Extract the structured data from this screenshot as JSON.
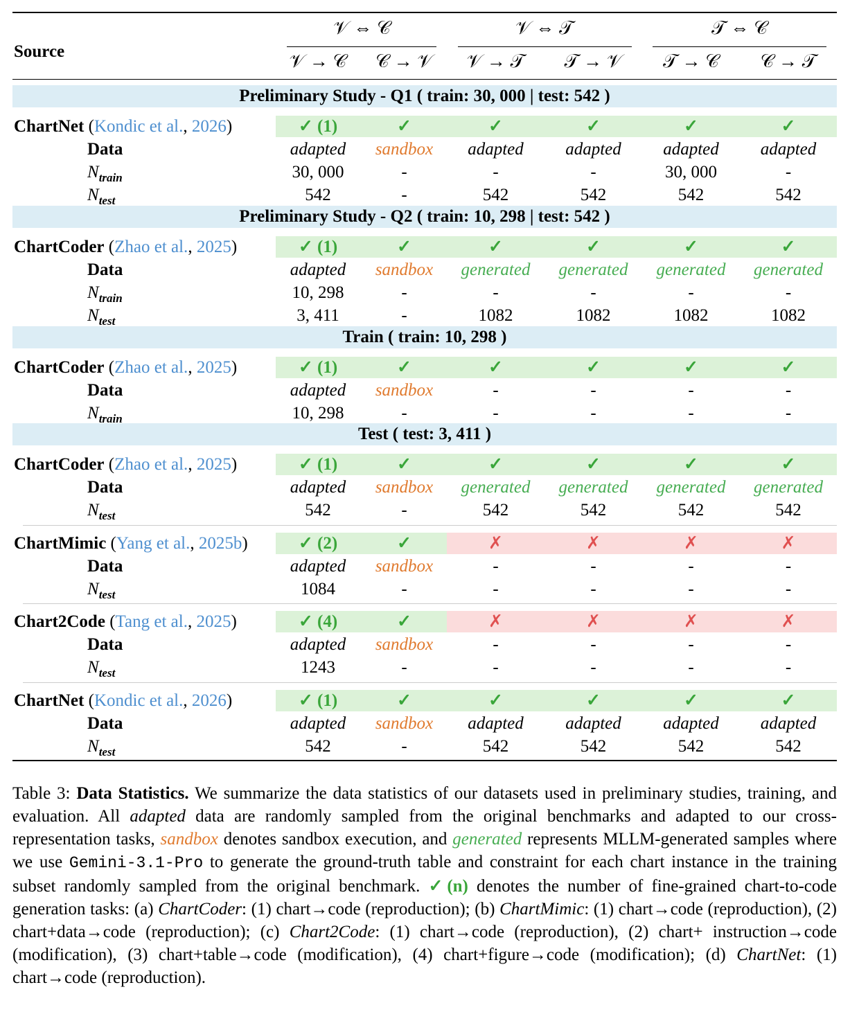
{
  "header": {
    "source": "Source",
    "groups": [
      "𝒱 ⇔ 𝒞",
      "𝒱 ⇔ 𝒯",
      "𝒯 ⇔ 𝒞"
    ],
    "tasks": [
      "𝒱 → 𝒞",
      "𝒞 → 𝒱",
      "𝒱 → 𝒯",
      "𝒯 → 𝒱",
      "𝒯 → 𝒞",
      "𝒞 → 𝒯"
    ]
  },
  "labels": {
    "data": "Data",
    "n": "N",
    "train": "train",
    "test": "test"
  },
  "bands": {
    "q1": "Preliminary Study - Q1 ( train: 30, 000 | test: 542 )",
    "q2": "Preliminary Study - Q2 ( train: 10, 298 | test: 542 )",
    "train": "Train ( train: 10, 298 )",
    "test": "Test ( test: 3, 411 )"
  },
  "blocks": {
    "b1": {
      "name": "ChartNet",
      "cite_a": "Kondic et al.",
      "cite_y": "2026",
      "first": "✓ (1)",
      "marks": [
        "✓",
        "✓",
        "✓",
        "✓",
        "✓"
      ],
      "data": [
        "adapted",
        "sandbox",
        "adapted",
        "adapted",
        "adapted",
        "adapted"
      ],
      "ntrain": [
        "30, 000",
        "-",
        "-",
        "-",
        "30, 000",
        "-"
      ],
      "ntest": [
        "542",
        "-",
        "542",
        "542",
        "542",
        "542"
      ]
    },
    "b2": {
      "name": "ChartCoder",
      "cite_a": "Zhao et al.",
      "cite_y": "2025",
      "first": "✓ (1)",
      "marks": [
        "✓",
        "✓",
        "✓",
        "✓",
        "✓"
      ],
      "data": [
        "adapted",
        "sandbox",
        "generated",
        "generated",
        "generated",
        "generated"
      ],
      "ntrain": [
        "10, 298",
        "-",
        "-",
        "-",
        "-",
        "-"
      ],
      "ntest": [
        "3, 411",
        "-",
        "1082",
        "1082",
        "1082",
        "1082"
      ]
    },
    "b3": {
      "name": "ChartCoder",
      "cite_a": "Zhao et al.",
      "cite_y": "2025",
      "first": "✓ (1)",
      "marks": [
        "✓",
        "✓",
        "✓",
        "✓",
        "✓"
      ],
      "data": [
        "adapted",
        "sandbox",
        "-",
        "-",
        "-",
        "-"
      ],
      "ntrain": [
        "10, 298",
        "-",
        "-",
        "-",
        "-",
        "-"
      ]
    },
    "b4": {
      "name": "ChartCoder",
      "cite_a": "Zhao et al.",
      "cite_y": "2025",
      "first": "✓ (1)",
      "marks": [
        "✓",
        "✓",
        "✓",
        "✓",
        "✓"
      ],
      "data": [
        "adapted",
        "sandbox",
        "generated",
        "generated",
        "generated",
        "generated"
      ],
      "ntest": [
        "542",
        "-",
        "542",
        "542",
        "542",
        "542"
      ]
    },
    "b5": {
      "name": "ChartMimic",
      "cite_a": "Yang et al.",
      "cite_y": "2025b",
      "first": "✓ (2)",
      "marks": [
        "✓",
        "✗",
        "✗",
        "✗",
        "✗"
      ],
      "data": [
        "adapted",
        "sandbox",
        "-",
        "-",
        "-",
        "-"
      ],
      "ntest": [
        "1084",
        "-",
        "-",
        "-",
        "-",
        "-"
      ]
    },
    "b6": {
      "name": "Chart2Code",
      "cite_a": "Tang et al.",
      "cite_y": "2025",
      "first": "✓ (4)",
      "marks": [
        "✓",
        "✗",
        "✗",
        "✗",
        "✗"
      ],
      "data": [
        "adapted",
        "sandbox",
        "-",
        "-",
        "-",
        "-"
      ],
      "ntest": [
        "1243",
        "-",
        "-",
        "-",
        "-",
        "-"
      ]
    },
    "b7": {
      "name": "ChartNet",
      "cite_a": "Kondic et al.",
      "cite_y": "2026",
      "first": "✓ (1)",
      "marks": [
        "✓",
        "✓",
        "✓",
        "✓",
        "✓"
      ],
      "data": [
        "adapted",
        "sandbox",
        "adapted",
        "adapted",
        "adapted",
        "adapted"
      ],
      "ntest": [
        "542",
        "-",
        "542",
        "542",
        "542",
        "542"
      ]
    }
  },
  "caption": {
    "p1": "Table 3: ",
    "p2": "Data Statistics.",
    "p3": " We summarize the data statistics of our datasets used in preliminary studies, training, and evaluation. All ",
    "p4": "adapted",
    "p5": " data are randomly sampled from the original benchmarks and adapted to our cross-representation tasks, ",
    "p6": "sandbox",
    "p7": " denotes sandbox execution, and ",
    "p8": "generated",
    "p9": " represents MLLM-generated samples where we use ",
    "p10": "Gemini-3.1-Pro",
    "p11": " to generate the ground-truth table and constraint for each chart instance in the training subset randomly sampled from the original benchmark. ",
    "p12": "✓(n)",
    "p13": " denotes the number of fine-grained chart-to-code generation tasks: (a) ",
    "p14": "ChartCoder",
    "p15": ": (1) chart→code (reproduction); (b) ",
    "p16": "ChartMimic",
    "p17": ": (1) chart→code (reproduction), (2) chart+data→code (reproduction); (c) ",
    "p18": "Chart2Code",
    "p19": ": (1) chart→code (reproduction), (2) chart+ instruction→code (modification), (3) chart+table→code (modification), (4) chart+figure→code (modification); (d) ",
    "p20": "ChartNet",
    "p21": ": (1) chart→code (reproduction)."
  },
  "colors": {
    "band": "#dcedf5",
    "check_bg": "#dcf2d8",
    "cross_bg": "#fbdcdc",
    "check": "#3aa63a",
    "cross": "#e05050",
    "sandbox": "#e07a2e",
    "generated": "#47ad52",
    "cite": "#4e8fcf"
  }
}
